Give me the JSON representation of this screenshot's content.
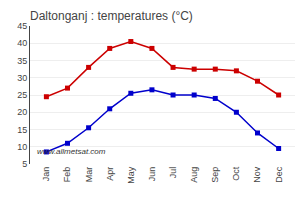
{
  "chart_data": {
    "type": "line",
    "title": "Daltonganj : temperatures (°C)",
    "categories": [
      "Jan",
      "Feb",
      "Mar",
      "Apr",
      "May",
      "Jun",
      "Jul",
      "Aug",
      "Sep",
      "Oct",
      "Nov",
      "Dec"
    ],
    "series": [
      {
        "color": "#cc0000",
        "marker": "square",
        "values": [
          24.5,
          27.0,
          33.0,
          38.5,
          40.5,
          38.5,
          33.0,
          32.5,
          32.5,
          32.0,
          29.0,
          25.0
        ]
      },
      {
        "color": "#0000cc",
        "marker": "square",
        "values": [
          8.5,
          11.0,
          15.5,
          21.0,
          25.5,
          26.5,
          25.0,
          25.0,
          24.0,
          20.0,
          14.0,
          9.5
        ]
      }
    ],
    "ylim": [
      5,
      45
    ],
    "yticks": [
      5,
      10,
      15,
      20,
      25,
      30,
      35,
      40,
      45
    ],
    "grid": true,
    "annotations": [
      "www.allmetsat.com"
    ]
  }
}
